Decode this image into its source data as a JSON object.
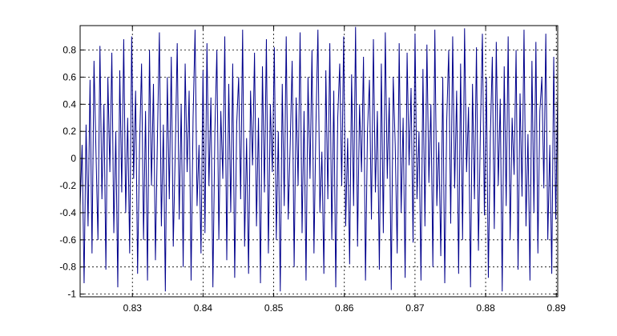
{
  "chart_data": {
    "type": "line",
    "title": "",
    "xlabel": "",
    "ylabel": "",
    "xlim": [
      0.8226,
      0.8902
    ],
    "ylim": [
      -1.02,
      0.98
    ],
    "x_ticks": [
      0.83,
      0.84,
      0.85,
      0.86,
      0.87,
      0.88,
      0.89
    ],
    "x_tick_labels": [
      "0.83",
      "0.84",
      "0.85",
      "0.86",
      "0.87",
      "0.88",
      "0.89"
    ],
    "y_ticks": [
      0.8,
      0.6,
      0.4,
      0.2,
      0,
      -0.2,
      -0.4,
      -0.6,
      -0.8,
      -1
    ],
    "y_tick_labels": [
      "0.8",
      "0.6",
      "0.4",
      "0.2",
      "0",
      "-0.2",
      "-0.4",
      "-0.6",
      "-0.8",
      "-1"
    ],
    "grid": true,
    "line_color": "#00008b",
    "series": [
      {
        "x_start": 0.8226,
        "x_end": 0.8902,
        "values": [
          -0.35,
          0.1,
          -0.92,
          0.25,
          -0.5,
          0.58,
          -0.7,
          0.72,
          0.05,
          -0.6,
          0.83,
          -0.3,
          0.4,
          -0.82,
          0.6,
          -0.1,
          0.78,
          -0.55,
          0.2,
          -0.95,
          0.65,
          -0.25,
          0.88,
          -0.4,
          0.3,
          -0.7,
          0.9,
          -0.15,
          0.5,
          -0.85,
          0.1,
          0.7,
          -0.6,
          0.35,
          -0.9,
          0.8,
          -0.2,
          0.55,
          -0.75,
          0.15,
          0.93,
          -0.5,
          0.25,
          -0.98,
          0.6,
          -0.3,
          0.75,
          -0.65,
          0.05,
          0.85,
          -0.45,
          0.4,
          -0.8,
          0.7,
          -0.1,
          0.5,
          -0.9,
          0.3,
          0.95,
          -0.35,
          0.1,
          -0.7,
          0.65,
          -0.55,
          0.85,
          -0.2,
          0.45,
          -0.95,
          0.2,
          0.8,
          -0.6,
          0.35,
          -0.15,
          0.9,
          -0.75,
          0.55,
          -0.4,
          0.7,
          -0.88,
          0.25,
          0.6,
          -0.3,
          0.95,
          -0.65,
          0.15,
          -0.85,
          0.5,
          -0.05,
          0.78,
          -0.5,
          0.3,
          -0.92,
          0.68,
          -0.25,
          0.88,
          -0.7,
          0.4,
          -0.1,
          0.82,
          -0.6,
          0.2,
          -0.98,
          0.55,
          -0.35,
          0.9,
          -0.45,
          0.1,
          0.72,
          -0.8,
          0.45,
          -0.2,
          0.93,
          -0.55,
          0.35,
          -0.9,
          0.6,
          -0.15,
          0.8,
          -0.7,
          0.25,
          0.95,
          -0.4,
          0.05,
          -0.85,
          0.65,
          -0.3,
          0.85,
          -0.6,
          0.5,
          -0.95,
          0.3,
          0.7,
          -0.2,
          0.9,
          -0.5,
          0.15,
          -0.78,
          0.62,
          -0.35,
          0.97,
          -0.65,
          0.4,
          -0.1,
          0.75,
          -0.9,
          0.2,
          0.58,
          -0.45,
          0.88,
          -0.25,
          0.35,
          -0.82,
          0.7,
          -0.55,
          0.93,
          -0.15,
          0.45,
          -0.97,
          0.6,
          0.1,
          -0.7,
          0.85,
          -0.4,
          0.3,
          -0.88,
          0.78,
          -0.05,
          0.52,
          -0.62,
          0.92,
          -0.3,
          0.2,
          -0.9,
          0.66,
          -0.5,
          0.84,
          -0.18,
          0.4,
          -0.8,
          0.95,
          -0.35,
          0.12,
          -0.72,
          0.6,
          -0.92,
          0.28,
          0.8,
          -0.48,
          0.9,
          -0.22,
          0.5,
          -0.85,
          0.7,
          -0.6,
          0.96,
          -0.1,
          0.38,
          -0.95,
          0.55,
          -0.3,
          0.82,
          -0.68,
          0.22,
          0.92,
          -0.42,
          0.6,
          -0.88,
          0.15,
          0.75,
          -0.52,
          0.86,
          -0.2,
          0.44,
          -0.98,
          0.68,
          -0.35,
          0.9,
          -0.6,
          0.3,
          -0.12,
          0.8,
          -0.82,
          0.48,
          -0.28,
          0.95,
          -0.5,
          0.18,
          -0.9,
          0.72,
          -0.4,
          0.86,
          -0.7,
          0.35,
          0.6,
          -0.22,
          0.92,
          -0.6,
          0.1,
          -0.85,
          0.75,
          -0.45,
          0.5
        ]
      }
    ]
  }
}
